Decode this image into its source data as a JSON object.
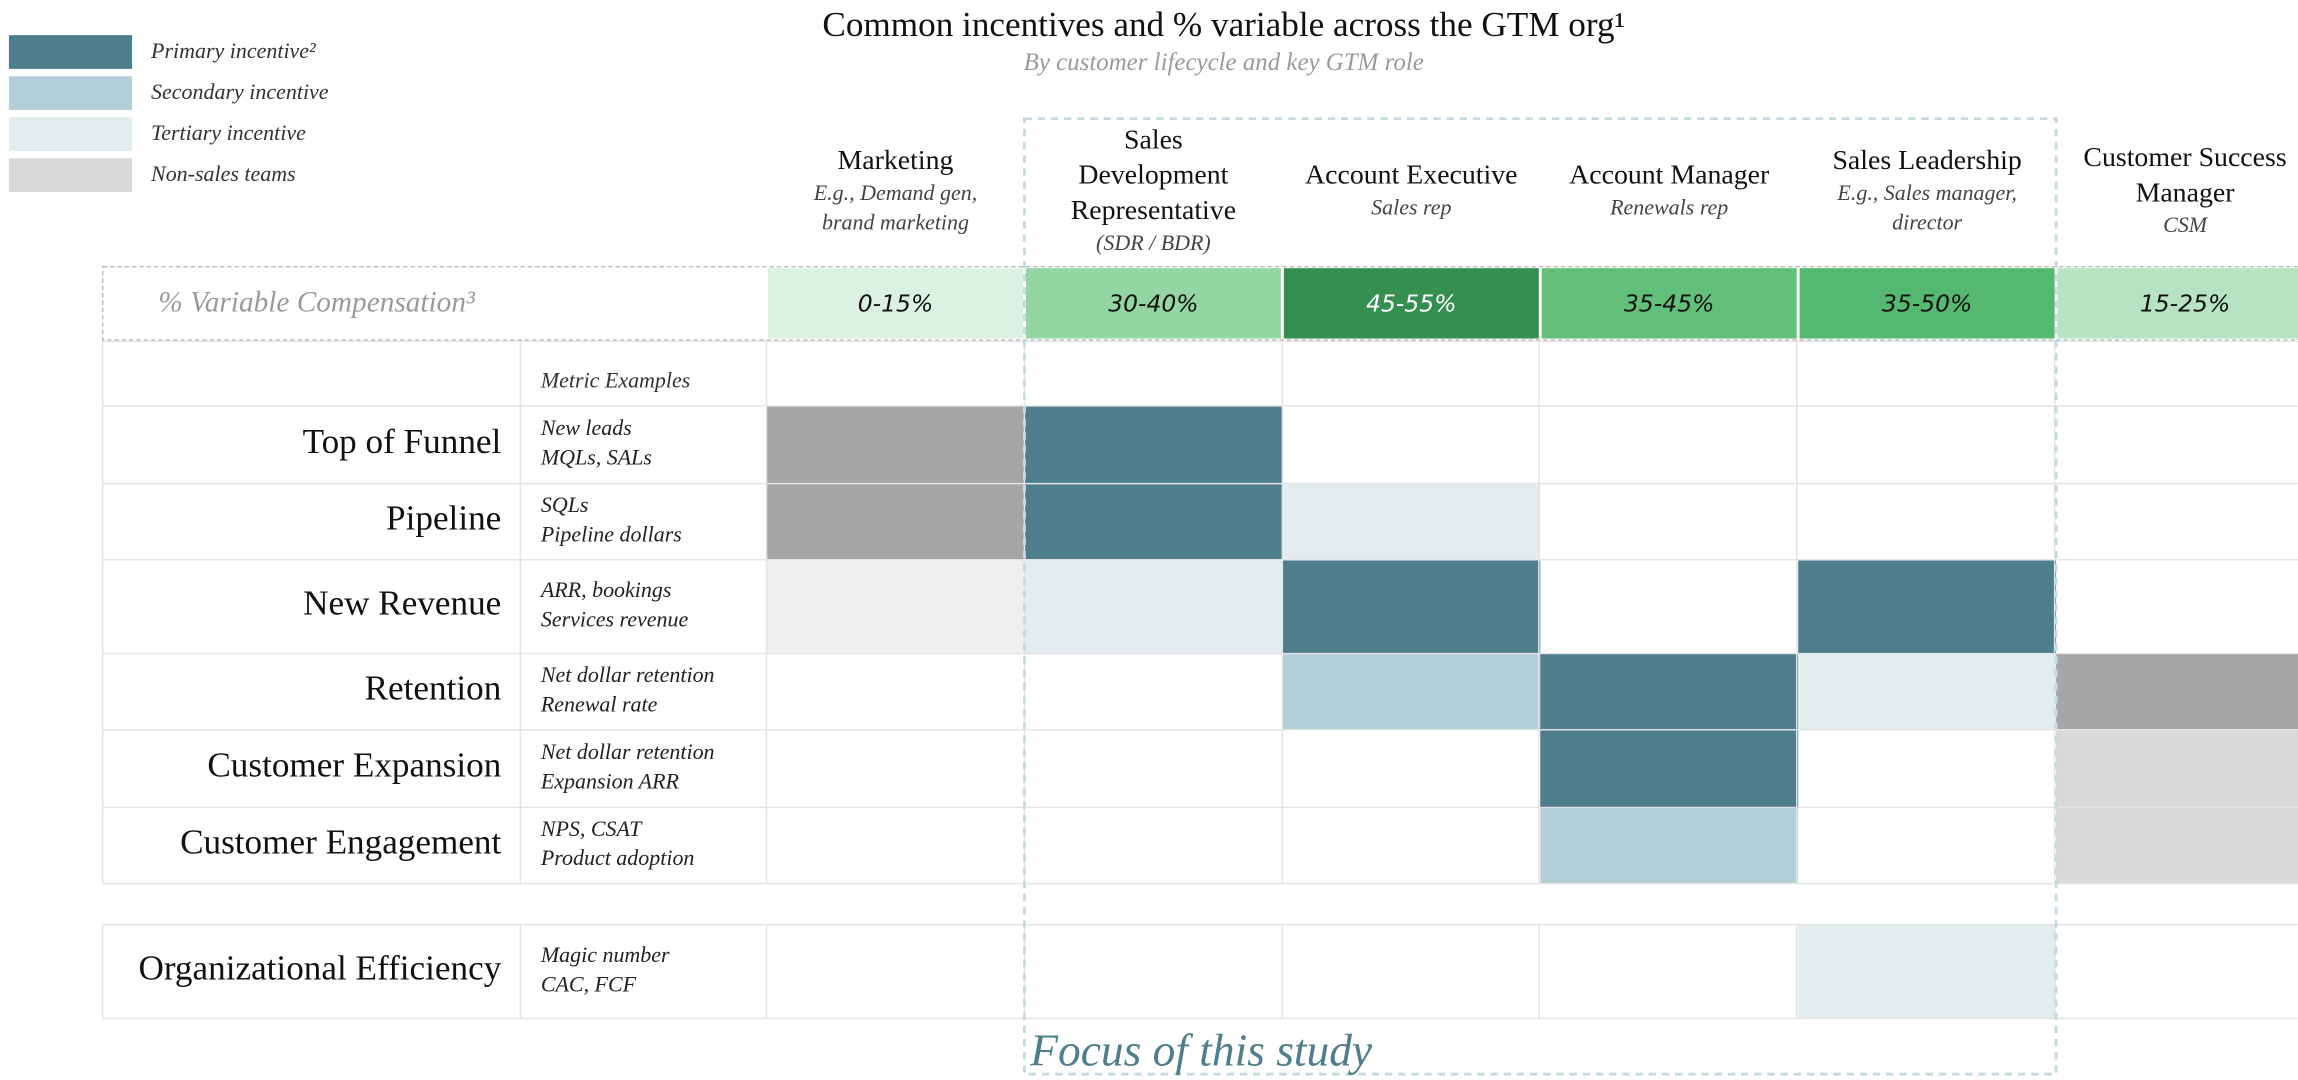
{
  "header": {
    "title": "Common incentives and % variable across the GTM org¹",
    "subtitle": "By customer lifecycle and key GTM role"
  },
  "legend": [
    {
      "label": "Primary incentive²",
      "color": "#4e7d8c"
    },
    {
      "label": "Secondary incentive",
      "color": "#b4ced7"
    },
    {
      "label": "Tertiary incentive",
      "color": "#e3ecee"
    },
    {
      "label": "Non-sales teams",
      "color": "#d9d9d9"
    }
  ],
  "columns": [
    {
      "title_lines": [
        "Marketing"
      ],
      "sub_lines": [
        "E.g., Demand gen,",
        "brand marketing"
      ]
    },
    {
      "title_lines": [
        "Sales",
        "Development",
        "Representative"
      ],
      "sub_lines": [
        "(SDR / BDR)"
      ]
    },
    {
      "title_lines": [
        "Account Executive"
      ],
      "sub_lines": [
        "Sales rep"
      ]
    },
    {
      "title_lines": [
        "Account Manager"
      ],
      "sub_lines": [
        "Renewals rep"
      ]
    },
    {
      "title_lines": [
        "Sales Leadership"
      ],
      "sub_lines": [
        "E.g., Sales manager,",
        "director"
      ]
    },
    {
      "title_lines": [
        "Customer Success",
        "Manager"
      ],
      "sub_lines": [
        "CSM"
      ]
    }
  ],
  "variable_comp": {
    "label": "% Variable Compensation³",
    "values": [
      "0-15%",
      "30-40%",
      "45-55%",
      "35-45%",
      "35-50%",
      "15-25%"
    ],
    "colors": [
      "#dbf2e3",
      "#93d5a3",
      "#358f50",
      "#62c07a",
      "#55b870",
      "#b6e3c2"
    ],
    "text_colors": [
      "#111111",
      "#111111",
      "#ffffff",
      "#111111",
      "#111111",
      "#111111"
    ]
  },
  "metric_header": "Metric Examples",
  "rows": [
    {
      "label": "Top of Funnel",
      "metrics": [
        "New leads",
        "MQLs, SALs"
      ],
      "cells": [
        "#a6a6a6",
        "#4e7d8c",
        null,
        null,
        null,
        null
      ]
    },
    {
      "label": "Pipeline",
      "metrics": [
        "SQLs",
        "Pipeline dollars"
      ],
      "cells": [
        "#a6a6a6",
        "#4e7d8c",
        "#e3ecee",
        null,
        null,
        null
      ]
    },
    {
      "label": "New Revenue",
      "metrics": [
        "ARR, bookings",
        "Services revenue"
      ],
      "cells": [
        "#efefef",
        "#e3ecee",
        "#4e7d8c",
        null,
        "#4e7d8c",
        null
      ]
    },
    {
      "label": "Retention",
      "metrics": [
        "Net dollar retention",
        "Renewal rate"
      ],
      "cells": [
        null,
        null,
        "#b4ced7",
        "#4e7d8c",
        "#e3ecee",
        "#a6a6a6"
      ]
    },
    {
      "label": "Customer Expansion",
      "metrics": [
        "Net dollar retention",
        "Expansion ARR"
      ],
      "cells": [
        null,
        null,
        null,
        "#4e7d8c",
        null,
        "#d9d9d9"
      ]
    },
    {
      "label": "Customer Engagement",
      "metrics": [
        "NPS, CSAT",
        "Product adoption"
      ],
      "cells": [
        null,
        null,
        null,
        "#b4ced7",
        null,
        "#d9d9d9"
      ]
    },
    {
      "label": "Organizational Efficiency",
      "metrics": [
        "Magic number",
        "CAC, FCF"
      ],
      "cells": [
        null,
        null,
        null,
        null,
        "#e3ecee",
        null
      ]
    }
  ],
  "focus_label": "Focus of this study"
}
